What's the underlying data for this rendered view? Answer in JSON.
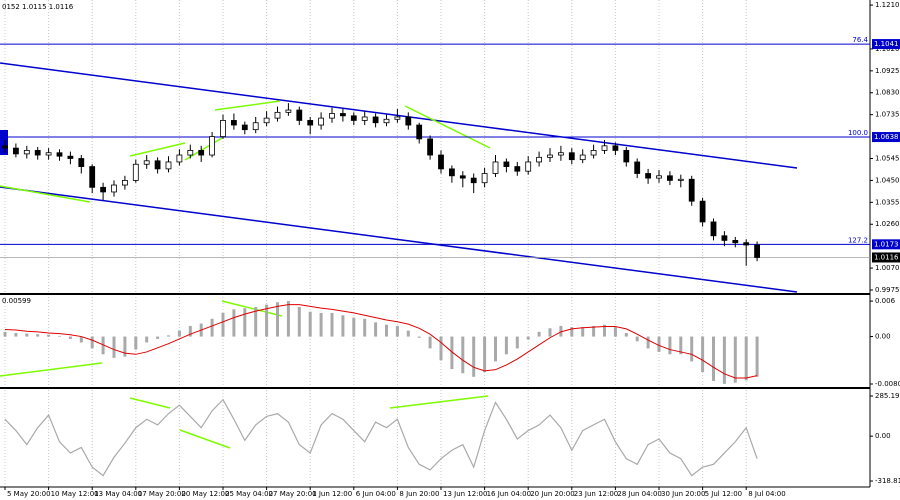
{
  "chart_data": [
    {
      "type": "candlestick",
      "header": "0152 1.0115 1.0116",
      "open": [
        1.06,
        1.059,
        1.0565,
        1.058,
        1.056,
        1.057,
        1.0555,
        1.0545,
        1.051,
        1.042,
        1.04,
        1.043,
        1.045,
        1.052,
        1.0535,
        1.05,
        1.053,
        1.056,
        1.058,
        1.056,
        1.064,
        1.071,
        1.069,
        1.067,
        1.07,
        1.072,
        1.0745,
        1.0755,
        1.071,
        1.069,
        1.072,
        1.074,
        1.073,
        1.071,
        1.0725,
        1.07,
        1.0715,
        1.0725,
        1.069,
        1.063,
        1.056,
        1.05,
        1.047,
        1.046,
        1.044,
        1.048,
        1.053,
        1.051,
        1.049,
        1.053,
        1.055,
        1.056,
        1.057,
        1.054,
        1.056,
        1.058,
        1.06,
        1.058,
        1.053,
        1.048,
        1.046,
        1.047,
        1.045,
        1.0455,
        1.036,
        1.027,
        1.021,
        1.019,
        1.018,
        1.017
      ],
      "high": [
        1.0625,
        1.061,
        1.06,
        1.0595,
        1.059,
        1.0585,
        1.0575,
        1.056,
        1.052,
        1.044,
        1.045,
        1.047,
        1.054,
        1.056,
        1.055,
        1.0555,
        1.0585,
        1.0605,
        1.06,
        1.066,
        1.0735,
        1.074,
        1.0705,
        1.0725,
        1.075,
        1.077,
        1.0785,
        1.077,
        1.0725,
        1.0745,
        1.0765,
        1.076,
        1.0745,
        1.075,
        1.074,
        1.0735,
        1.076,
        1.0745,
        1.07,
        1.0645,
        1.058,
        1.0515,
        1.049,
        1.048,
        1.0505,
        1.056,
        1.0545,
        1.053,
        1.0555,
        1.0575,
        1.059,
        1.06,
        1.059,
        1.0585,
        1.0605,
        1.0625,
        1.0615,
        1.0595,
        1.0545,
        1.05,
        1.0495,
        1.049,
        1.0475,
        1.047,
        1.0375,
        1.0285,
        1.023,
        1.0205,
        1.0195,
        1.0185
      ],
      "low": [
        1.057,
        1.055,
        1.0545,
        1.054,
        1.054,
        1.0535,
        1.052,
        1.048,
        1.0395,
        1.0365,
        1.038,
        1.041,
        1.044,
        1.05,
        1.048,
        1.0485,
        1.0515,
        1.0545,
        1.053,
        1.055,
        1.063,
        1.067,
        1.065,
        1.0655,
        1.0685,
        1.0705,
        1.073,
        1.069,
        1.065,
        1.067,
        1.07,
        1.0705,
        1.069,
        1.069,
        1.068,
        1.0685,
        1.07,
        1.067,
        1.061,
        1.054,
        1.048,
        1.044,
        1.042,
        1.0395,
        1.042,
        1.0465,
        1.0485,
        1.047,
        1.0475,
        1.051,
        1.053,
        1.0535,
        1.052,
        1.0525,
        1.0545,
        1.0565,
        1.056,
        1.051,
        1.046,
        1.0435,
        1.044,
        1.043,
        1.042,
        1.034,
        1.025,
        1.019,
        1.0165,
        1.016,
        1.008,
        1.01
      ],
      "close": [
        1.059,
        1.0565,
        1.058,
        1.056,
        1.057,
        1.0555,
        1.0545,
        1.051,
        1.042,
        1.04,
        1.043,
        1.045,
        1.052,
        1.0535,
        1.05,
        1.053,
        1.056,
        1.058,
        1.056,
        1.064,
        1.071,
        1.069,
        1.067,
        1.07,
        1.072,
        1.0745,
        1.0755,
        1.071,
        1.069,
        1.072,
        1.074,
        1.073,
        1.071,
        1.0725,
        1.07,
        1.0715,
        1.0725,
        1.069,
        1.063,
        1.056,
        1.05,
        1.047,
        1.046,
        1.044,
        1.048,
        1.053,
        1.051,
        1.049,
        1.053,
        1.055,
        1.056,
        1.057,
        1.054,
        1.056,
        1.058,
        1.06,
        1.058,
        1.053,
        1.048,
        1.046,
        1.047,
        1.045,
        1.0455,
        1.036,
        1.027,
        1.021,
        1.019,
        1.018,
        1.017,
        1.0116
      ],
      "color": "#000000",
      "ylim": [
        0.9962,
        1.1232
      ],
      "yticks": [
        {
          "value": 1.121,
          "label": "1.1210"
        },
        {
          "value": 1.102,
          "label": "1.1020"
        },
        1.0925,
        {
          "value": 1.083,
          "label": "1.0830"
        },
        1.0735,
        1.0545,
        {
          "value": 1.045,
          "label": "1.0450"
        },
        1.0355,
        {
          "value": 1.026,
          "label": "1.0260"
        },
        {
          "value": 1.007,
          "label": "1.0070"
        },
        0.9975
      ],
      "levels": [
        {
          "label": "76.4",
          "value": 1.1041
        },
        {
          "label": "100.0",
          "value": 1.0638
        },
        {
          "label": "127.2",
          "value": 1.0173
        }
      ],
      "level_color": "#0000cd",
      "bid": 1.0116,
      "xticks": [
        {
          "value": 0,
          "label": "5 May 20:00"
        },
        {
          "value": 4,
          "label": "10 May 12:00"
        },
        {
          "value": 8,
          "label": "13 May 04:00"
        },
        {
          "value": 12,
          "label": "17 May 20:00"
        },
        {
          "value": 16,
          "label": "20 May 12:00"
        },
        {
          "value": 20,
          "label": "25 May 04:00"
        },
        {
          "value": 24,
          "label": "27 May 20:00"
        },
        {
          "value": 28,
          "label": "1 Jun 12:00"
        },
        {
          "value": 32,
          "label": "6 Jun 04:00"
        },
        {
          "value": 36,
          "label": "8 Jun 20:00"
        },
        {
          "value": 40,
          "label": "13 Jun 12:00"
        },
        {
          "value": 44,
          "label": "16 Jun 04:00"
        },
        {
          "value": 48,
          "label": "20 Jun 20:00"
        },
        {
          "value": 52,
          "label": "23 Jun 12:00"
        },
        {
          "value": 56,
          "label": "28 Jun 04:00"
        },
        {
          "value": 60,
          "label": "30 Jun 20:00"
        },
        {
          "value": 64,
          "label": "5 Jul 12:00"
        },
        {
          "value": 68,
          "label": "8 Jul 04:00"
        }
      ]
    },
    {
      "type": "macd",
      "title": "0.00599",
      "values": [
        0.0008,
        0.0006,
        0.0005,
        0.0004,
        0.0003,
        0.0001,
        -0.0004,
        -0.001,
        -0.002,
        -0.003,
        -0.0036,
        -0.0034,
        -0.0022,
        -0.001,
        -0.0004,
        0.0002,
        0.001,
        0.0018,
        0.0022,
        0.003,
        0.004,
        0.0046,
        0.0048,
        0.005,
        0.0054,
        0.0058,
        0.006,
        0.005,
        0.0042,
        0.004,
        0.004,
        0.0036,
        0.0032,
        0.003,
        0.0024,
        0.002,
        0.0018,
        0.001,
        -0.0002,
        -0.002,
        -0.004,
        -0.0055,
        -0.0062,
        -0.0068,
        -0.006,
        -0.0042,
        -0.003,
        -0.002,
        -0.0005,
        0.0008,
        0.0014,
        0.0018,
        0.0016,
        0.0016,
        0.0018,
        0.002,
        0.0016,
        0.0006,
        -0.0008,
        -0.002,
        -0.0026,
        -0.003,
        -0.003,
        -0.0042,
        -0.006,
        -0.0075,
        -0.008,
        -0.0078,
        -0.0074,
        -0.0068
      ],
      "signal": [
        0.0012,
        0.0011,
        0.0009,
        0.0008,
        0.0006,
        0.0005,
        0.0003,
        0.0,
        -0.0006,
        -0.0014,
        -0.0022,
        -0.0028,
        -0.003,
        -0.0026,
        -0.0019,
        -0.0012,
        -0.0004,
        0.0004,
        0.0011,
        0.0018,
        0.0025,
        0.0032,
        0.0038,
        0.0043,
        0.0047,
        0.0051,
        0.0054,
        0.0054,
        0.0051,
        0.0048,
        0.0046,
        0.0043,
        0.004,
        0.0036,
        0.0032,
        0.0028,
        0.0025,
        0.0021,
        0.0014,
        0.0004,
        -0.001,
        -0.0026,
        -0.004,
        -0.0052,
        -0.0058,
        -0.0056,
        -0.0048,
        -0.0038,
        -0.0026,
        -0.0014,
        -0.0002,
        0.0008,
        0.0013,
        0.0015,
        0.0016,
        0.0017,
        0.0017,
        0.0013,
        0.0004,
        -0.0006,
        -0.0015,
        -0.0022,
        -0.0026,
        -0.003,
        -0.004,
        -0.0052,
        -0.0063,
        -0.007,
        -0.007,
        -0.0066
      ],
      "color": "#a9a9a9",
      "signal_color": "#e00000",
      "ylim": [
        -0.00853,
        0.00686
      ],
      "yticks": [
        0.006,
        {
          "value": 0,
          "label": "0.00"
        },
        -0.00802
      ]
    },
    {
      "type": "line",
      "values": [
        120,
        40,
        -60,
        60,
        150,
        -40,
        -120,
        -80,
        -220,
        -280,
        -150,
        -50,
        60,
        120,
        80,
        160,
        220,
        140,
        60,
        180,
        260,
        120,
        -30,
        80,
        140,
        160,
        100,
        -60,
        -120,
        80,
        160,
        120,
        40,
        -40,
        100,
        60,
        120,
        -80,
        -200,
        -240,
        -160,
        -100,
        -60,
        -220,
        40,
        240,
        120,
        -20,
        40,
        80,
        150,
        60,
        -100,
        40,
        80,
        120,
        -40,
        -160,
        -200,
        -60,
        -20,
        -120,
        -160,
        -280,
        -220,
        -200,
        -120,
        -40,
        60,
        -160
      ],
      "color": "#a9a9a9",
      "ylim": [
        -347,
        328
      ],
      "yticks": [
        285.1954,
        {
          "value": 0,
          "label": "0.00"
        },
        -318.8114
      ]
    }
  ]
}
